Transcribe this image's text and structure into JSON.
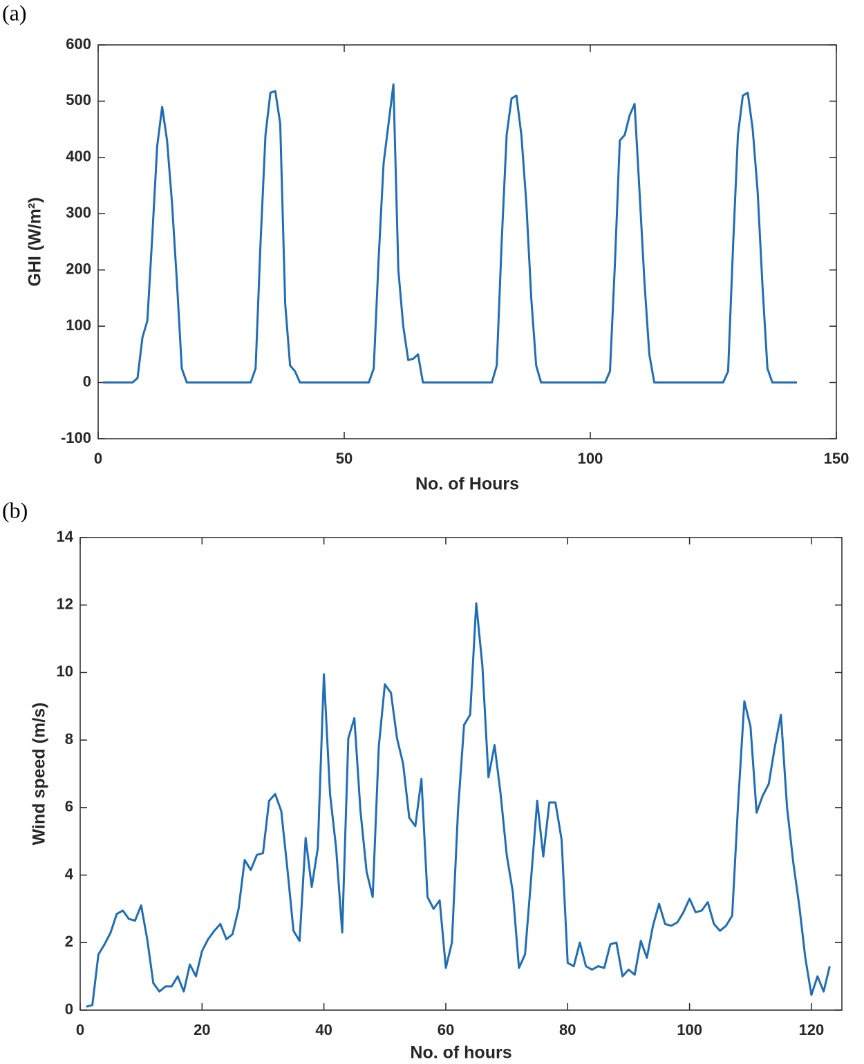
{
  "chart_data": [
    {
      "type": "line",
      "panel_label": "(a)",
      "xlabel": "No. of Hours",
      "ylabel": "GHI (W/m²)",
      "xlim": [
        0,
        150
      ],
      "xticks": [
        0,
        50,
        100,
        150
      ],
      "ylim": [
        -100,
        600
      ],
      "yticks": [
        -100,
        0,
        100,
        200,
        300,
        400,
        500,
        600
      ],
      "series": [
        {
          "color": "#1f6db5",
          "x": [
            1,
            2,
            3,
            4,
            5,
            6,
            7,
            8,
            9,
            10,
            11,
            12,
            13,
            14,
            15,
            16,
            17,
            18,
            19,
            20,
            21,
            22,
            23,
            24,
            25,
            26,
            27,
            28,
            29,
            30,
            31,
            32,
            33,
            34,
            35,
            36,
            37,
            38,
            39,
            40,
            41,
            42,
            43,
            44,
            45,
            46,
            47,
            48,
            49,
            50,
            51,
            52,
            53,
            54,
            55,
            56,
            57,
            58,
            59,
            60,
            61,
            62,
            63,
            64,
            65,
            66,
            67,
            68,
            69,
            70,
            71,
            72,
            73,
            74,
            75,
            76,
            77,
            78,
            79,
            80,
            81,
            82,
            83,
            84,
            85,
            86,
            87,
            88,
            89,
            90,
            91,
            92,
            93,
            94,
            95,
            96,
            97,
            98,
            99,
            100,
            101,
            102,
            103,
            104,
            105,
            106,
            107,
            108,
            109,
            110,
            111,
            112,
            113,
            114,
            115,
            116,
            117,
            118,
            119,
            120,
            121,
            122,
            123,
            124,
            125,
            126,
            127,
            128,
            129,
            130,
            131,
            132,
            133,
            134,
            135,
            136,
            137,
            138,
            139,
            140,
            141,
            142
          ],
          "values": [
            0,
            0,
            0,
            0,
            0,
            0,
            0,
            8,
            80,
            110,
            260,
            420,
            490,
            430,
            320,
            180,
            25,
            0,
            0,
            0,
            0,
            0,
            0,
            0,
            0,
            0,
            0,
            0,
            0,
            0,
            0,
            25,
            250,
            440,
            515,
            518,
            460,
            140,
            30,
            20,
            0,
            0,
            0,
            0,
            0,
            0,
            0,
            0,
            0,
            0,
            0,
            0,
            0,
            0,
            0,
            25,
            220,
            390,
            460,
            530,
            200,
            100,
            40,
            42,
            50,
            0,
            0,
            0,
            0,
            0,
            0,
            0,
            0,
            0,
            0,
            0,
            0,
            0,
            0,
            0,
            30,
            250,
            440,
            505,
            510,
            440,
            320,
            150,
            30,
            0,
            0,
            0,
            0,
            0,
            0,
            0,
            0,
            0,
            0,
            0,
            0,
            0,
            0,
            20,
            210,
            430,
            440,
            475,
            495,
            340,
            180,
            50,
            0,
            0,
            0,
            0,
            0,
            0,
            0,
            0,
            0,
            0,
            0,
            0,
            0,
            0,
            0,
            20,
            240,
            440,
            510,
            515,
            450,
            340,
            170,
            25,
            0,
            0,
            0,
            0,
            0,
            0
          ]
        }
      ]
    },
    {
      "type": "line",
      "panel_label": "(b)",
      "xlabel": "No. of hours",
      "ylabel": "Wind speed (m/s)",
      "xlim": [
        0,
        125
      ],
      "xticks": [
        0,
        20,
        40,
        60,
        80,
        100,
        120
      ],
      "ylim": [
        0,
        14
      ],
      "yticks": [
        0,
        2,
        4,
        6,
        8,
        10,
        12,
        14
      ],
      "series": [
        {
          "color": "#1f6db5",
          "x": [
            1,
            2,
            3,
            4,
            5,
            6,
            7,
            8,
            9,
            10,
            11,
            12,
            13,
            14,
            15,
            16,
            17,
            18,
            19,
            20,
            21,
            22,
            23,
            24,
            25,
            26,
            27,
            28,
            29,
            30,
            31,
            32,
            33,
            34,
            35,
            36,
            37,
            38,
            39,
            40,
            41,
            42,
            43,
            44,
            45,
            46,
            47,
            48,
            49,
            50,
            51,
            52,
            53,
            54,
            55,
            56,
            57,
            58,
            59,
            60,
            61,
            62,
            63,
            64,
            65,
            66,
            67,
            68,
            69,
            70,
            71,
            72,
            73,
            74,
            75,
            76,
            77,
            78,
            79,
            80,
            81,
            82,
            83,
            84,
            85,
            86,
            87,
            88,
            89,
            90,
            91,
            92,
            93,
            94,
            95,
            96,
            97,
            98,
            99,
            100,
            101,
            102,
            103,
            104,
            105,
            106,
            107,
            108,
            109,
            110,
            111,
            112,
            113,
            114,
            115,
            116,
            117,
            118,
            119,
            120,
            121,
            122,
            123
          ],
          "values": [
            0.1,
            0.15,
            1.65,
            1.95,
            2.3,
            2.85,
            2.95,
            2.7,
            2.65,
            3.1,
            2.1,
            0.8,
            0.55,
            0.7,
            0.7,
            1.0,
            0.55,
            1.35,
            1.0,
            1.75,
            2.1,
            2.35,
            2.55,
            2.1,
            2.25,
            3.0,
            4.45,
            4.15,
            4.6,
            4.65,
            6.2,
            6.4,
            5.9,
            4.2,
            2.35,
            2.05,
            5.1,
            3.65,
            4.8,
            9.95,
            6.4,
            4.8,
            2.3,
            8.05,
            8.65,
            5.9,
            4.1,
            3.35,
            7.8,
            9.65,
            9.4,
            8.05,
            7.3,
            5.7,
            5.45,
            6.85,
            3.35,
            3.0,
            3.25,
            1.25,
            2.0,
            5.9,
            8.45,
            8.75,
            12.05,
            10.2,
            6.9,
            7.85,
            6.4,
            4.6,
            3.5,
            1.25,
            1.65,
            3.9,
            6.2,
            4.55,
            6.15,
            6.15,
            5.05,
            1.4,
            1.3,
            2.0,
            1.3,
            1.2,
            1.3,
            1.25,
            1.95,
            2.0,
            1.0,
            1.2,
            1.05,
            2.05,
            1.55,
            2.5,
            3.15,
            2.55,
            2.5,
            2.6,
            2.9,
            3.3,
            2.9,
            2.95,
            3.2,
            2.55,
            2.35,
            2.5,
            2.8,
            6.2,
            9.15,
            8.4,
            5.85,
            6.35,
            6.7,
            7.8,
            8.75,
            6.0,
            4.4,
            3.1,
            1.55,
            0.45,
            1.0,
            0.55,
            1.3
          ]
        }
      ]
    }
  ]
}
